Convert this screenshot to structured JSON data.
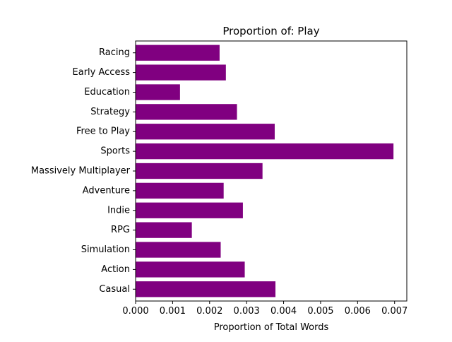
{
  "chart_data": {
    "type": "bar",
    "orientation": "horizontal",
    "title": "Proportion of: Play",
    "xlabel": "Proportion of Total Words",
    "ylabel": "",
    "xlim": [
      0,
      0.00733
    ],
    "x_ticks": [
      0.0,
      0.001,
      0.002,
      0.003,
      0.004,
      0.005,
      0.006,
      0.007
    ],
    "x_tick_labels": [
      "0.000",
      "0.001",
      "0.002",
      "0.003",
      "0.004",
      "0.005",
      "0.006",
      "0.007"
    ],
    "categories": [
      "Casual",
      "Action",
      "Simulation",
      "RPG",
      "Indie",
      "Adventure",
      "Massively Multiplayer",
      "Sports",
      "Free to Play",
      "Strategy",
      "Education",
      "Early Access",
      "Racing"
    ],
    "values": [
      0.00378,
      0.00295,
      0.0023,
      0.00152,
      0.0029,
      0.00238,
      0.00343,
      0.00697,
      0.00376,
      0.00274,
      0.0012,
      0.00244,
      0.00227
    ],
    "bar_color": "#800080",
    "grid": false,
    "legend": "none"
  }
}
